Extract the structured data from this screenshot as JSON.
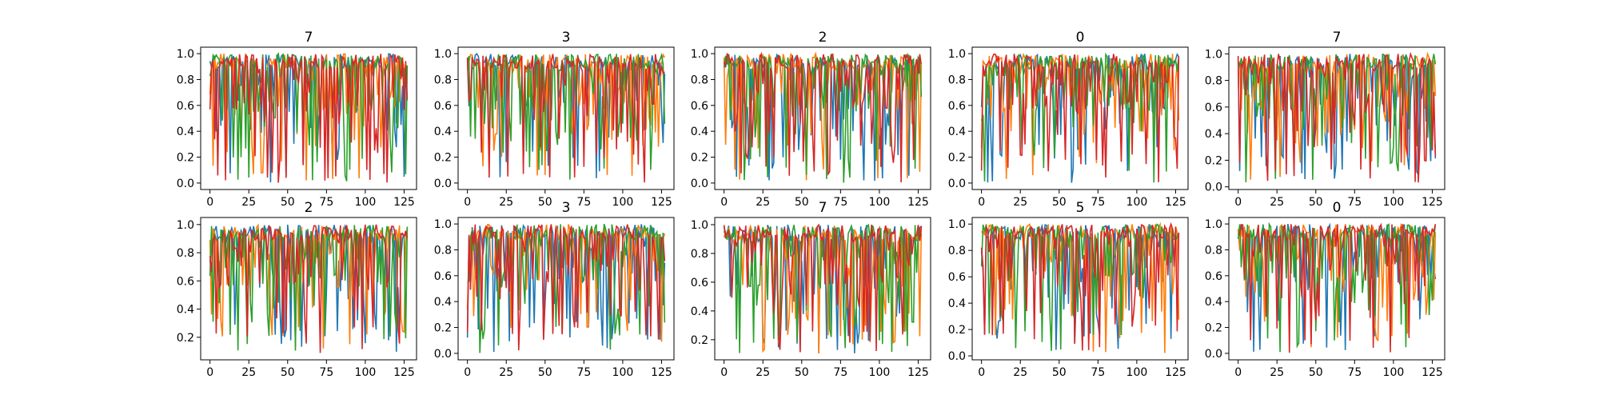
{
  "colors": {
    "C0": "#1f77b4",
    "C1": "#ff7f0e",
    "C2": "#2ca02c",
    "C3": "#d62728"
  },
  "chart_data": [
    {
      "type": "line",
      "title": "7",
      "xlim": [
        -6,
        133
      ],
      "ylim": [
        -0.05,
        1.05
      ],
      "xticks": [
        0,
        25,
        50,
        75,
        100,
        125
      ],
      "yticks": [
        0.0,
        0.2,
        0.4,
        0.6,
        0.8,
        1.0
      ],
      "ytick_labels": [
        "0.0",
        "0.2",
        "0.4",
        "0.6",
        "0.8",
        "1.0"
      ],
      "n_points": 128,
      "series_colors": [
        "#1f77b4",
        "#ff7f0e",
        "#2ca02c",
        "#d62728"
      ],
      "y_range_observed": [
        0.0,
        1.0
      ]
    },
    {
      "type": "line",
      "title": "3",
      "xlim": [
        -6,
        133
      ],
      "ylim": [
        -0.05,
        1.05
      ],
      "xticks": [
        0,
        25,
        50,
        75,
        100,
        125
      ],
      "yticks": [
        0.0,
        0.2,
        0.4,
        0.6,
        0.8,
        1.0
      ],
      "ytick_labels": [
        "0.0",
        "0.2",
        "0.4",
        "0.6",
        "0.8",
        "1.0"
      ],
      "n_points": 128,
      "series_colors": [
        "#1f77b4",
        "#ff7f0e",
        "#2ca02c",
        "#d62728"
      ],
      "y_range_observed": [
        0.0,
        1.0
      ]
    },
    {
      "type": "line",
      "title": "2",
      "xlim": [
        -6,
        133
      ],
      "ylim": [
        -0.05,
        1.05
      ],
      "xticks": [
        0,
        25,
        50,
        75,
        100,
        125
      ],
      "yticks": [
        0.0,
        0.2,
        0.4,
        0.6,
        0.8,
        1.0
      ],
      "ytick_labels": [
        "0.0",
        "0.2",
        "0.4",
        "0.6",
        "0.8",
        "1.0"
      ],
      "n_points": 128,
      "series_colors": [
        "#1f77b4",
        "#ff7f0e",
        "#2ca02c",
        "#d62728"
      ],
      "y_range_observed": [
        0.0,
        1.0
      ]
    },
    {
      "type": "line",
      "title": "0",
      "xlim": [
        -6,
        133
      ],
      "ylim": [
        -0.05,
        1.05
      ],
      "xticks": [
        0,
        25,
        50,
        75,
        100,
        125
      ],
      "yticks": [
        0.0,
        0.2,
        0.4,
        0.6,
        0.8,
        1.0
      ],
      "ytick_labels": [
        "0.0",
        "0.2",
        "0.4",
        "0.6",
        "0.8",
        "1.0"
      ],
      "n_points": 128,
      "series_colors": [
        "#1f77b4",
        "#ff7f0e",
        "#2ca02c",
        "#d62728"
      ],
      "y_range_observed": [
        0.0,
        1.0
      ]
    },
    {
      "type": "line",
      "title": "7",
      "xlim": [
        -6,
        133
      ],
      "ylim": [
        -0.02,
        1.05
      ],
      "xticks": [
        0,
        25,
        50,
        75,
        100,
        125
      ],
      "yticks": [
        0.0,
        0.2,
        0.4,
        0.6,
        0.8,
        1.0
      ],
      "ytick_labels": [
        "0.0",
        "0.2",
        "0.4",
        "0.6",
        "0.8",
        "1.0"
      ],
      "n_points": 128,
      "series_colors": [
        "#1f77b4",
        "#ff7f0e",
        "#2ca02c",
        "#d62728"
      ],
      "y_range_observed": [
        0.03,
        1.0
      ]
    },
    {
      "type": "line",
      "title": "2",
      "xlim": [
        -6,
        133
      ],
      "ylim": [
        0.04,
        1.05
      ],
      "xticks": [
        0,
        25,
        50,
        75,
        100,
        125
      ],
      "yticks": [
        0.2,
        0.4,
        0.6,
        0.8,
        1.0
      ],
      "ytick_labels": [
        "0.2",
        "0.4",
        "0.6",
        "0.8",
        "1.0"
      ],
      "n_points": 128,
      "series_colors": [
        "#1f77b4",
        "#ff7f0e",
        "#2ca02c",
        "#d62728"
      ],
      "y_range_observed": [
        0.08,
        1.0
      ]
    },
    {
      "type": "line",
      "title": "3",
      "xlim": [
        -6,
        133
      ],
      "ylim": [
        -0.05,
        1.05
      ],
      "xticks": [
        0,
        25,
        50,
        75,
        100,
        125
      ],
      "yticks": [
        0.0,
        0.2,
        0.4,
        0.6,
        0.8,
        1.0
      ],
      "ytick_labels": [
        "0.0",
        "0.2",
        "0.4",
        "0.6",
        "0.8",
        "1.0"
      ],
      "n_points": 128,
      "series_colors": [
        "#1f77b4",
        "#ff7f0e",
        "#2ca02c",
        "#d62728"
      ],
      "y_range_observed": [
        0.0,
        1.0
      ]
    },
    {
      "type": "line",
      "title": "7",
      "xlim": [
        -6,
        133
      ],
      "ylim": [
        0.06,
        1.05
      ],
      "xticks": [
        0,
        25,
        50,
        75,
        100,
        125
      ],
      "yticks": [
        0.2,
        0.4,
        0.6,
        0.8,
        1.0
      ],
      "ytick_labels": [
        "0.2",
        "0.4",
        "0.6",
        "0.8",
        "1.0"
      ],
      "n_points": 128,
      "series_colors": [
        "#1f77b4",
        "#ff7f0e",
        "#2ca02c",
        "#d62728"
      ],
      "y_range_observed": [
        0.1,
        1.0
      ]
    },
    {
      "type": "line",
      "title": "5",
      "xlim": [
        -6,
        133
      ],
      "ylim": [
        -0.03,
        1.05
      ],
      "xticks": [
        0,
        25,
        50,
        75,
        100,
        125
      ],
      "yticks": [
        0.0,
        0.2,
        0.4,
        0.6,
        0.8,
        1.0
      ],
      "ytick_labels": [
        "0.0",
        "0.2",
        "0.4",
        "0.6",
        "0.8",
        "1.0"
      ],
      "n_points": 128,
      "series_colors": [
        "#1f77b4",
        "#ff7f0e",
        "#2ca02c",
        "#d62728"
      ],
      "y_range_observed": [
        0.02,
        1.0
      ]
    },
    {
      "type": "line",
      "title": "0",
      "xlim": [
        -6,
        133
      ],
      "ylim": [
        -0.05,
        1.05
      ],
      "xticks": [
        0,
        25,
        50,
        75,
        100,
        125
      ],
      "yticks": [
        0.0,
        0.2,
        0.4,
        0.6,
        0.8,
        1.0
      ],
      "ytick_labels": [
        "0.0",
        "0.2",
        "0.4",
        "0.6",
        "0.8",
        "1.0"
      ],
      "n_points": 128,
      "series_colors": [
        "#1f77b4",
        "#ff7f0e",
        "#2ca02c",
        "#d62728"
      ],
      "y_range_observed": [
        0.0,
        1.0
      ]
    }
  ]
}
